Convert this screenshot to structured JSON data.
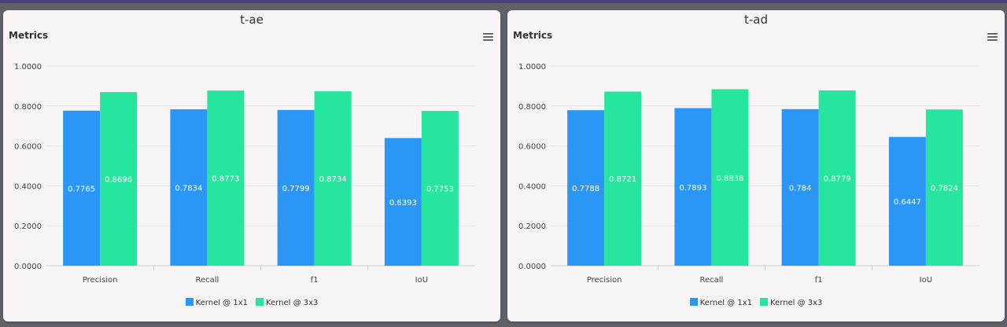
{
  "chart_data": [
    {
      "type": "bar",
      "title": "t-ae",
      "heading": "Metrics",
      "categories": [
        "Precision",
        "Recall",
        "f1",
        "IoU"
      ],
      "series": [
        {
          "name": "Kernel @ 1x1",
          "color": "#2a96f5",
          "values": [
            0.7765,
            0.7834,
            0.7799,
            0.6393
          ]
        },
        {
          "name": "Kernel @ 3x3",
          "color": "#26e59e",
          "values": [
            0.8696,
            0.8773,
            0.8734,
            0.7753
          ]
        }
      ],
      "ylim": [
        0,
        1.0
      ],
      "yticks": [
        "0.0000",
        "0.2000",
        "0.4000",
        "0.6000",
        "0.8000",
        "1.0000"
      ],
      "grid": true,
      "legend": "bottom-center"
    },
    {
      "type": "bar",
      "title": "t-ad",
      "heading": "Metrics",
      "categories": [
        "Precision",
        "Recall",
        "f1",
        "IoU"
      ],
      "series": [
        {
          "name": "Kernel @ 1x1",
          "color": "#2a96f5",
          "values": [
            0.7788,
            0.7893,
            0.784,
            0.6447
          ]
        },
        {
          "name": "Kernel @ 3x3",
          "color": "#26e59e",
          "values": [
            0.8721,
            0.8838,
            0.8779,
            0.7824
          ]
        }
      ],
      "ylim": [
        0,
        1.0
      ],
      "yticks": [
        "0.0000",
        "0.2000",
        "0.4000",
        "0.6000",
        "0.8000",
        "1.0000"
      ],
      "grid": true,
      "legend": "bottom-center"
    }
  ]
}
